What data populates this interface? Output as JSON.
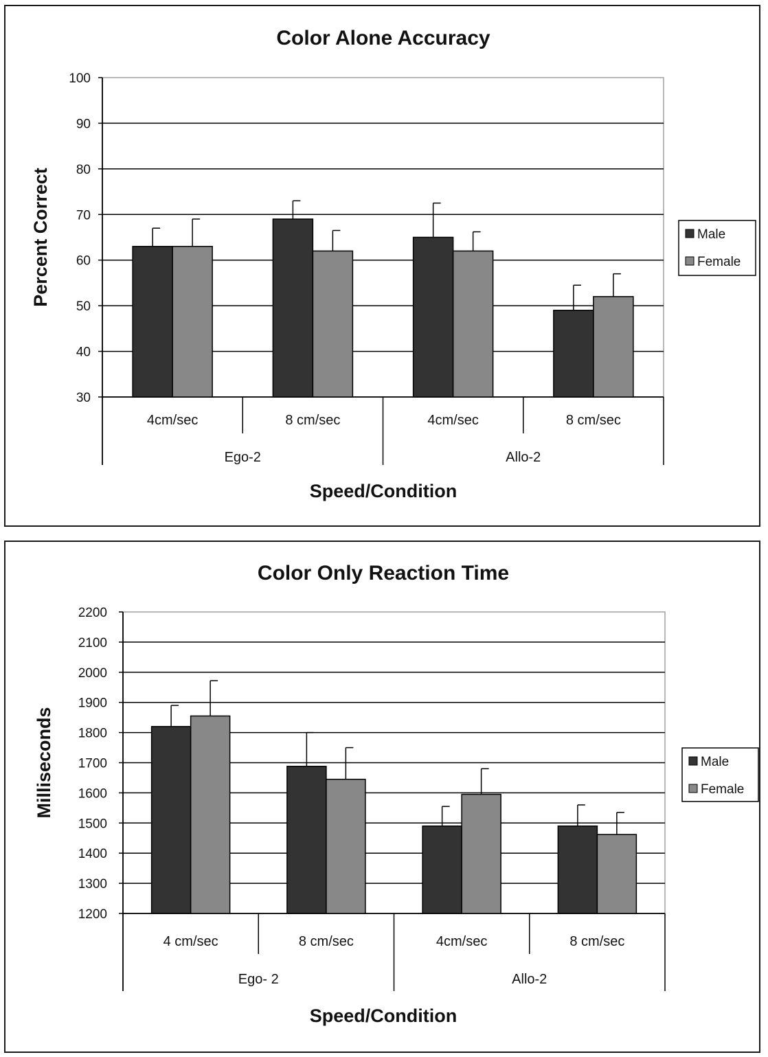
{
  "chart_data": [
    {
      "type": "bar",
      "title": "Color Alone Accuracy",
      "xlabel": "Speed/Condition",
      "ylabel": "Percent Correct",
      "ylim": [
        30,
        100
      ],
      "yticks": [
        "100",
        "90",
        "80",
        "70",
        "60",
        "50",
        "40",
        "30"
      ],
      "categories": [
        "4cm/sec",
        "8 cm/sec",
        "4cm/sec",
        "8 cm/sec"
      ],
      "groups": [
        "Ego-2",
        "Allo-2"
      ],
      "series": [
        {
          "name": "Male",
          "values": [
            63,
            69,
            65,
            49
          ],
          "error": [
            4,
            4,
            7.5,
            5.5
          ]
        },
        {
          "name": "Female",
          "values": [
            63,
            62,
            62,
            52
          ],
          "error": [
            6,
            4.5,
            4.2,
            5
          ]
        }
      ],
      "grid": true,
      "legend": "right"
    },
    {
      "type": "bar",
      "title": "Color Only Reaction Time",
      "xlabel": "Speed/Condition",
      "ylabel": "Milliseconds",
      "ylim": [
        1200,
        2200
      ],
      "yticks": [
        "2200",
        "2100",
        "2000",
        "1900",
        "1800",
        "1700",
        "1600",
        "1500",
        "1400",
        "1300",
        "1200"
      ],
      "categories": [
        "4 cm/sec",
        "8 cm/sec",
        "4cm/sec",
        "8 cm/sec"
      ],
      "groups": [
        "Ego- 2",
        "Allo-2"
      ],
      "series": [
        {
          "name": "Male",
          "values": [
            1820,
            1688,
            1490,
            1490
          ],
          "error": [
            70,
            112,
            65,
            70
          ]
        },
        {
          "name": "Female",
          "values": [
            1855,
            1645,
            1595,
            1462
          ],
          "error": [
            117,
            105,
            85,
            73
          ]
        }
      ],
      "grid": true,
      "legend": "right"
    }
  ],
  "colors": {
    "male": "#333333",
    "female": "#888888",
    "grid": "#000000",
    "plot_border": "#a0a0a0"
  }
}
